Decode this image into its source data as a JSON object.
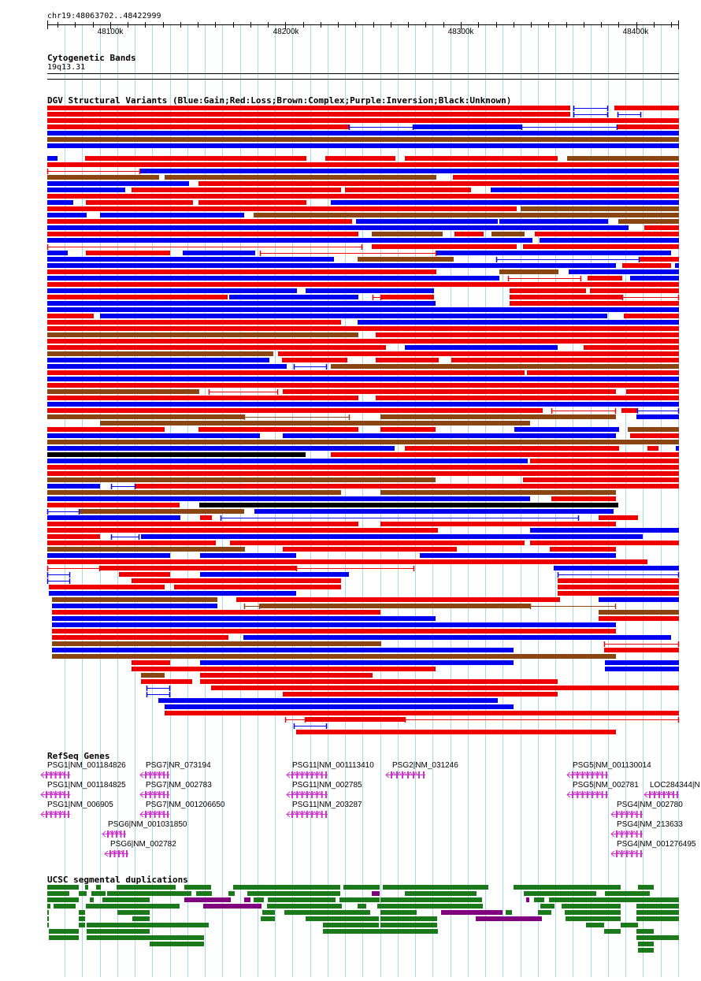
{
  "browser": {
    "position": "chr19:48063702..48422999",
    "ticks": [
      "48100k",
      "48200k",
      "48300k",
      "48400k"
    ],
    "tick_values_bp": [
      48100000,
      48200000,
      48300000,
      48400000
    ]
  },
  "colors": {
    "gain": "#0000ee",
    "loss": "#ee0000",
    "complex": "#8b4513",
    "inversion": "#800080",
    "unknown": "#000000",
    "gene": "#cc33cc",
    "segdup_green": "#1a7a1a",
    "segdup_purple": "#800080",
    "gridline": "#a8d8ea"
  },
  "tracks": {
    "cytobands": {
      "title": "Cytogenetic Bands",
      "band_label": "19q13.31"
    },
    "dgv": {
      "title": "DGV Structural Variants (Blue:Gain;Red:Loss;Brown:Complex;Purple:Inversion;Black:Unknown)"
    },
    "refseq": {
      "title": "RefSeq Genes",
      "genes": [
        "PSG1|NM_001184826",
        "PSG7|NR_073194",
        "PSG11|NM_001113410",
        "PSG2|NM_031246",
        "PSG5|NM_001130014",
        "PSG1|NM_001184825",
        "PSG7|NM_002783",
        "PSG11|NM_002785",
        "PSG5|NM_002781",
        "LOC284344|N",
        "PSG1|NM_006905",
        "PSG7|NM_001206650",
        "PSG11|NM_203287",
        "PSG4|NM_002780",
        "PSG6|NM_001031850",
        "PSG4|NM_213633",
        "PSG6|NM_002782",
        "PSG4|NM_001276495"
      ]
    },
    "segdup": {
      "title": "UCSC segmental duplications"
    }
  }
}
